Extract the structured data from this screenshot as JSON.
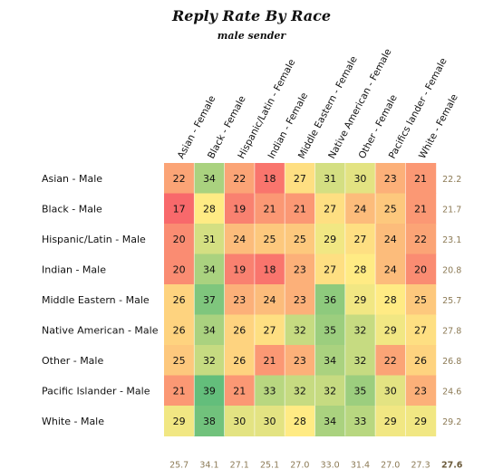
{
  "chart_data": {
    "type": "heatmap",
    "title": "Reply Rate By Race",
    "subtitle": "male sender",
    "columns": [
      "Asian - Female",
      "Black - Female",
      "Hispanic/Latin - Female",
      "Indian - Female",
      "Middle Eastern - Female",
      "Native American - Female",
      "Other - Female",
      "Pacifics lander - Female",
      "White - Female"
    ],
    "rows": [
      "Asian - Male",
      "Black - Male",
      "Hispanic/Latin - Male",
      "Indian - Male",
      "Middle Eastern - Male",
      "Native American - Male",
      "Other - Male",
      "Pacific Islander - Male",
      "White - Male"
    ],
    "values": [
      [
        22,
        34,
        22,
        18,
        27,
        31,
        30,
        23,
        21
      ],
      [
        17,
        28,
        19,
        21,
        21,
        27,
        24,
        25,
        21
      ],
      [
        20,
        31,
        24,
        25,
        25,
        29,
        27,
        24,
        22
      ],
      [
        20,
        34,
        19,
        18,
        23,
        27,
        28,
        24,
        20
      ],
      [
        26,
        37,
        23,
        24,
        23,
        36,
        29,
        28,
        25
      ],
      [
        26,
        34,
        26,
        27,
        32,
        35,
        32,
        29,
        27
      ],
      [
        25,
        32,
        26,
        21,
        23,
        34,
        32,
        22,
        26
      ],
      [
        21,
        39,
        21,
        33,
        32,
        32,
        35,
        30,
        23
      ],
      [
        29,
        38,
        30,
        30,
        28,
        34,
        33,
        29,
        29
      ]
    ],
    "row_averages": [
      "22.2",
      "21.7",
      "23.1",
      "20.8",
      "25.7",
      "27.8",
      "26.8",
      "24.6",
      "29.2"
    ],
    "column_averages": [
      "25.7",
      "34.1",
      "27.1",
      "25.1",
      "27.0",
      "33.0",
      "31.4",
      "27.0",
      "27.3"
    ],
    "overall_average": "27.6",
    "color_scale": {
      "low": "#f8696b",
      "mid": "#ffeb84",
      "high": "#63be7b"
    }
  },
  "colors": {
    "summary_text": "#8c7a55",
    "overall_text": "#6b5a3a"
  }
}
